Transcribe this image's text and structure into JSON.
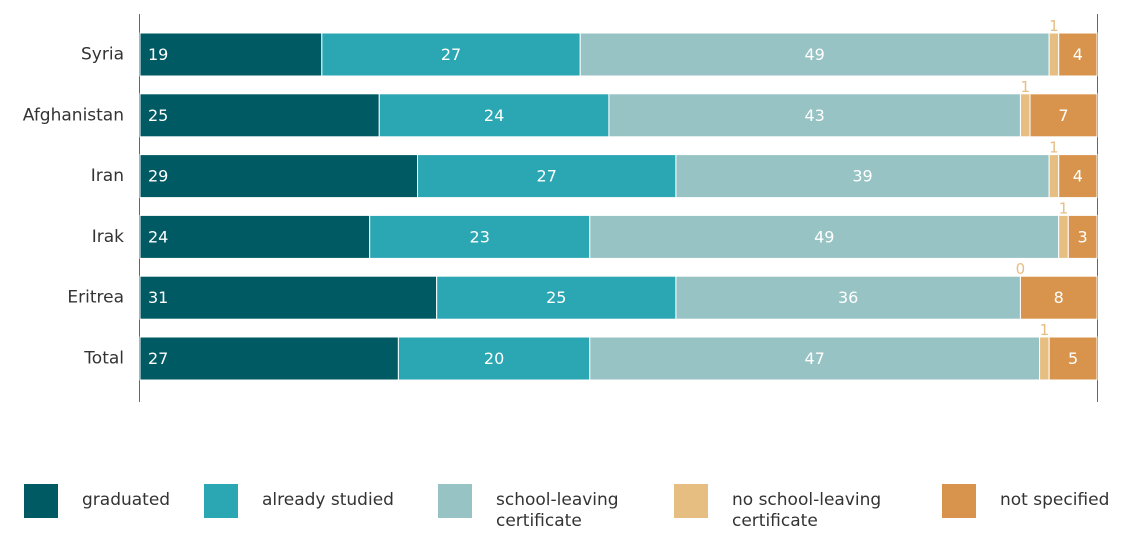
{
  "chart_data": {
    "type": "bar",
    "orientation": "horizontal",
    "stacked": true,
    "categories": [
      "Syria",
      "Afghanistan",
      "Iran",
      "Irak",
      "Eritrea",
      "Total"
    ],
    "series": [
      {
        "name": "graduated",
        "color": "#005a63",
        "label_color": "#ffffff",
        "values": [
          19,
          25,
          29,
          24,
          31,
          27
        ]
      },
      {
        "name": "already studied",
        "color": "#2ba6b3",
        "label_color": "#ffffff",
        "values": [
          27,
          24,
          27,
          23,
          25,
          20
        ]
      },
      {
        "name": "school-leaving certificate",
        "color": "#97c3c4",
        "label_color": "#ffffff",
        "values": [
          49,
          43,
          39,
          49,
          36,
          47
        ]
      },
      {
        "name": "no school-leaving certificate",
        "color": "#e6be82",
        "label_color": "#e6be82",
        "values": [
          1,
          1,
          1,
          1,
          0,
          1
        ]
      },
      {
        "name": "not specified",
        "color": "#d8944d",
        "label_color": "#ffffff",
        "values": [
          4,
          7,
          4,
          3,
          8,
          5
        ]
      }
    ],
    "xlim": [
      0,
      100
    ],
    "grid": false,
    "legend_position": "bottom"
  },
  "legend": {
    "items": [
      {
        "label": "graduated",
        "color": "#005a63"
      },
      {
        "label": "already studied",
        "color": "#2ba6b3"
      },
      {
        "label": "school-leaving certificate",
        "color": "#97c3c4"
      },
      {
        "label": "no school-leaving certificate",
        "color": "#e6be82"
      },
      {
        "label": "not specified",
        "color": "#d8944d"
      }
    ]
  }
}
